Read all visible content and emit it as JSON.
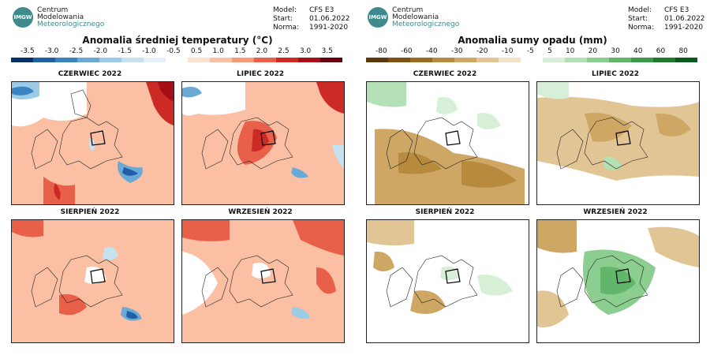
{
  "panels": {
    "temperature": {
      "logo": {
        "abbr": "IMGW",
        "line1": "Centrum",
        "line2": "Modelowania",
        "line3": "Meteorologicznego"
      },
      "meta": [
        {
          "key": "Model:",
          "value": "CFS E3"
        },
        {
          "key": "Start:",
          "value": "01.06.2022"
        },
        {
          "key": "Norma:",
          "value": "1991-2020"
        }
      ],
      "title": "Anomalia średniej temperatury (°C)",
      "colorbar": {
        "labels": [
          "-3.5",
          "-3.0",
          "-2.5",
          "-2.0",
          "-1.5",
          "-1.0",
          "-0.5",
          "0.5",
          "1.0",
          "1.5",
          "2.0",
          "2.5",
          "3.0",
          "3.5"
        ],
        "colors": [
          "#08306b",
          "#1f5fa8",
          "#3a84c2",
          "#6aa9d6",
          "#9ccbe6",
          "#c6e1f0",
          "#e4f1f8",
          "#ffffff",
          "#fde2d2",
          "#fbc0a4",
          "#f6987a",
          "#e8604a",
          "#cc2a25",
          "#a50f15",
          "#67000d"
        ]
      },
      "maps": [
        {
          "title": "CZERWIEC 2022"
        },
        {
          "title": "LIPIEC 2022"
        },
        {
          "title": "SIERPIEŃ 2022"
        },
        {
          "title": "WRZESIEŃ 2022"
        }
      ]
    },
    "precipitation": {
      "logo": {
        "abbr": "IMGW",
        "line1": "Centrum",
        "line2": "Modelowania",
        "line3": "Meteorologicznego"
      },
      "meta": [
        {
          "key": "Model:",
          "value": "CFS E3"
        },
        {
          "key": "Start:",
          "value": "01.06.2022"
        },
        {
          "key": "Norma:",
          "value": "1991-2020"
        }
      ],
      "title": "Anomalia sumy opadu (mm)",
      "colorbar": {
        "labels": [
          "-80",
          "-60",
          "-40",
          "-30",
          "-20",
          "-10",
          "-5",
          "5",
          "10",
          "20",
          "30",
          "40",
          "60",
          "80"
        ],
        "colors": [
          "#5a3a0c",
          "#7c5315",
          "#9a6c23",
          "#b78a3d",
          "#cfa765",
          "#e2c594",
          "#f1e2c6",
          "#ffffff",
          "#d6efd6",
          "#b3e0b5",
          "#8ccd90",
          "#62b66a",
          "#3b9a49",
          "#1f7a30",
          "#0b5a1f"
        ]
      },
      "maps": [
        {
          "title": "CZERWIEC 2022"
        },
        {
          "title": "LIPIEC 2022"
        },
        {
          "title": "SIERPIEŃ 2022"
        },
        {
          "title": "WRZESIEŃ 2022"
        }
      ]
    }
  }
}
